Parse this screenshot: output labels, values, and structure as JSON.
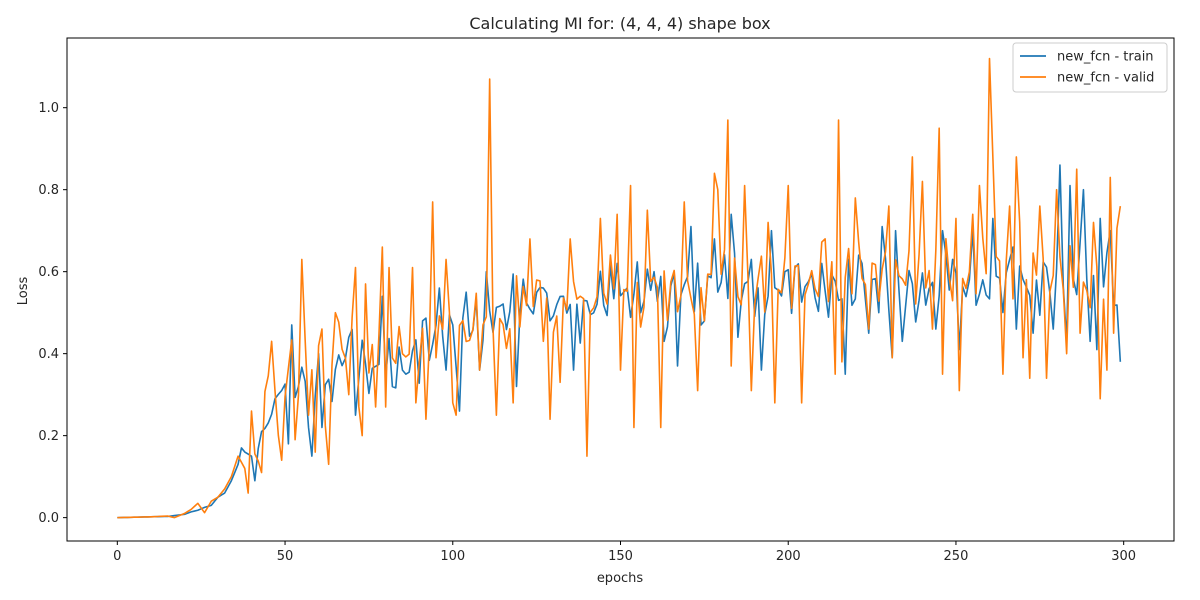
{
  "chart_data": {
    "type": "line",
    "title": "Calculating MI for: (4, 4, 4) shape box",
    "xlabel": "epochs",
    "ylabel": "Loss",
    "xlim": [
      -15,
      315
    ],
    "ylim": [
      -0.057,
      1.17
    ],
    "x_ticks": [
      0,
      50,
      100,
      150,
      200,
      250,
      300
    ],
    "y_ticks": [
      0.0,
      0.2,
      0.4,
      0.6,
      0.8,
      1.0
    ],
    "legend_position": "top-right",
    "grid": false,
    "series": [
      {
        "name": "new_fcn - train",
        "color": "#1f77b4",
        "anchors": [
          [
            0,
            0.0
          ],
          [
            10,
            0.002
          ],
          [
            15,
            0.003
          ],
          [
            20,
            0.008
          ],
          [
            22,
            0.014
          ],
          [
            24,
            0.018
          ],
          [
            26,
            0.025
          ],
          [
            28,
            0.03
          ],
          [
            30,
            0.05
          ],
          [
            32,
            0.06
          ],
          [
            34,
            0.09
          ],
          [
            36,
            0.13
          ],
          [
            38,
            0.16
          ],
          [
            40,
            0.15
          ],
          [
            42,
            0.17
          ],
          [
            44,
            0.21
          ],
          [
            46,
            0.26
          ],
          [
            48,
            0.3
          ],
          [
            50,
            0.33
          ],
          [
            52,
            0.3
          ],
          [
            54,
            0.33
          ],
          [
            56,
            0.35
          ],
          [
            58,
            0.3
          ],
          [
            60,
            0.28
          ],
          [
            62,
            0.3
          ],
          [
            64,
            0.33
          ],
          [
            66,
            0.37
          ],
          [
            68,
            0.4
          ],
          [
            70,
            0.42
          ],
          [
            75,
            0.35
          ],
          [
            80,
            0.36
          ],
          [
            85,
            0.36
          ],
          [
            90,
            0.4
          ],
          [
            95,
            0.45
          ],
          [
            100,
            0.44
          ],
          [
            105,
            0.46
          ],
          [
            110,
            0.5
          ],
          [
            115,
            0.5
          ],
          [
            120,
            0.53
          ],
          [
            125,
            0.52
          ],
          [
            130,
            0.54
          ],
          [
            135,
            0.5
          ],
          [
            140,
            0.5
          ],
          [
            145,
            0.55
          ],
          [
            150,
            0.53
          ],
          [
            155,
            0.55
          ],
          [
            160,
            0.56
          ],
          [
            165,
            0.54
          ],
          [
            170,
            0.56
          ],
          [
            175,
            0.55
          ],
          [
            180,
            0.58
          ],
          [
            185,
            0.57
          ],
          [
            190,
            0.55
          ],
          [
            195,
            0.56
          ],
          [
            200,
            0.58
          ],
          [
            205,
            0.57
          ],
          [
            210,
            0.55
          ],
          [
            215,
            0.56
          ],
          [
            220,
            0.57
          ],
          [
            225,
            0.56
          ],
          [
            230,
            0.57
          ],
          [
            235,
            0.55
          ],
          [
            240,
            0.56
          ],
          [
            245,
            0.57
          ],
          [
            250,
            0.56
          ],
          [
            255,
            0.58
          ],
          [
            260,
            0.56
          ],
          [
            265,
            0.57
          ],
          [
            270,
            0.58
          ],
          [
            275,
            0.57
          ],
          [
            280,
            0.6
          ],
          [
            285,
            0.6
          ],
          [
            290,
            0.58
          ],
          [
            295,
            0.58
          ],
          [
            299,
            0.5
          ]
        ],
        "spikes": [
          [
            37,
            0.17
          ],
          [
            41,
            0.09
          ],
          [
            43,
            0.21
          ],
          [
            51,
            0.18
          ],
          [
            52,
            0.47
          ],
          [
            54,
            0.32
          ],
          [
            57,
            0.22
          ],
          [
            58,
            0.15
          ],
          [
            60,
            0.4
          ],
          [
            61,
            0.22
          ],
          [
            69,
            0.44
          ],
          [
            71,
            0.25
          ],
          [
            79,
            0.54
          ],
          [
            91,
            0.48
          ],
          [
            96,
            0.56
          ],
          [
            98,
            0.36
          ],
          [
            102,
            0.26
          ],
          [
            104,
            0.55
          ],
          [
            108,
            0.36
          ],
          [
            110,
            0.6
          ],
          [
            119,
            0.32
          ],
          [
            127,
            0.56
          ],
          [
            129,
            0.48
          ],
          [
            135,
            0.52
          ],
          [
            136,
            0.36
          ],
          [
            149,
            0.62
          ],
          [
            156,
            0.5
          ],
          [
            160,
            0.6
          ],
          [
            163,
            0.43
          ],
          [
            167,
            0.37
          ],
          [
            171,
            0.71
          ],
          [
            174,
            0.47
          ],
          [
            178,
            0.68
          ],
          [
            183,
            0.74
          ],
          [
            185,
            0.44
          ],
          [
            189,
            0.63
          ],
          [
            192,
            0.36
          ],
          [
            195,
            0.7
          ],
          [
            199,
            0.6
          ],
          [
            210,
            0.62
          ],
          [
            215,
            0.53
          ],
          [
            217,
            0.35
          ],
          [
            222,
            0.62
          ],
          [
            224,
            0.45
          ],
          [
            228,
            0.71
          ],
          [
            231,
            0.39
          ],
          [
            232,
            0.7
          ],
          [
            234,
            0.43
          ],
          [
            239,
            0.53
          ],
          [
            244,
            0.46
          ],
          [
            246,
            0.7
          ],
          [
            249,
            0.63
          ],
          [
            251,
            0.41
          ],
          [
            255,
            0.7
          ],
          [
            258,
            0.58
          ],
          [
            261,
            0.73
          ],
          [
            267,
            0.66
          ],
          [
            268,
            0.46
          ],
          [
            273,
            0.45
          ],
          [
            279,
            0.46
          ],
          [
            281,
            0.86
          ],
          [
            283,
            0.43
          ],
          [
            284,
            0.81
          ],
          [
            287,
            0.67
          ],
          [
            288,
            0.8
          ],
          [
            290,
            0.43
          ],
          [
            292,
            0.41
          ],
          [
            293,
            0.73
          ],
          [
            296,
            0.7
          ],
          [
            299,
            0.38
          ]
        ]
      },
      {
        "name": "new_fcn - valid",
        "color": "#ff7f0e",
        "anchors": [
          [
            0,
            0.0
          ],
          [
            10,
            0.002
          ],
          [
            15,
            0.004
          ],
          [
            17,
            0.0
          ],
          [
            20,
            0.01
          ],
          [
            22,
            0.02
          ],
          [
            24,
            0.035
          ],
          [
            26,
            0.012
          ],
          [
            28,
            0.04
          ],
          [
            30,
            0.05
          ],
          [
            32,
            0.07
          ],
          [
            34,
            0.1
          ],
          [
            36,
            0.15
          ],
          [
            38,
            0.12
          ],
          [
            40,
            0.17
          ],
          [
            42,
            0.14
          ],
          [
            44,
            0.3
          ],
          [
            46,
            0.4
          ],
          [
            48,
            0.2
          ],
          [
            50,
            0.3
          ],
          [
            52,
            0.42
          ],
          [
            54,
            0.3
          ],
          [
            56,
            0.45
          ],
          [
            58,
            0.35
          ],
          [
            60,
            0.42
          ],
          [
            62,
            0.2
          ],
          [
            64,
            0.42
          ],
          [
            66,
            0.45
          ],
          [
            68,
            0.4
          ],
          [
            70,
            0.45
          ],
          [
            75,
            0.4
          ],
          [
            80,
            0.45
          ],
          [
            85,
            0.4
          ],
          [
            90,
            0.45
          ],
          [
            95,
            0.48
          ],
          [
            100,
            0.44
          ],
          [
            105,
            0.45
          ],
          [
            110,
            0.55
          ],
          [
            115,
            0.45
          ],
          [
            120,
            0.5
          ],
          [
            125,
            0.55
          ],
          [
            130,
            0.5
          ],
          [
            135,
            0.52
          ],
          [
            140,
            0.5
          ],
          [
            145,
            0.58
          ],
          [
            150,
            0.55
          ],
          [
            155,
            0.5
          ],
          [
            160,
            0.6
          ],
          [
            165,
            0.55
          ],
          [
            170,
            0.55
          ],
          [
            175,
            0.55
          ],
          [
            180,
            0.6
          ],
          [
            185,
            0.55
          ],
          [
            190,
            0.58
          ],
          [
            195,
            0.55
          ],
          [
            200,
            0.6
          ],
          [
            205,
            0.55
          ],
          [
            210,
            0.6
          ],
          [
            215,
            0.58
          ],
          [
            220,
            0.6
          ],
          [
            225,
            0.6
          ],
          [
            230,
            0.58
          ],
          [
            235,
            0.6
          ],
          [
            240,
            0.6
          ],
          [
            245,
            0.62
          ],
          [
            250,
            0.58
          ],
          [
            255,
            0.6
          ],
          [
            260,
            0.62
          ],
          [
            265,
            0.6
          ],
          [
            270,
            0.6
          ],
          [
            275,
            0.58
          ],
          [
            280,
            0.6
          ],
          [
            285,
            0.58
          ],
          [
            290,
            0.55
          ],
          [
            295,
            0.55
          ],
          [
            299,
            0.76
          ]
        ],
        "spikes": [
          [
            39,
            0.06
          ],
          [
            40,
            0.26
          ],
          [
            43,
            0.11
          ],
          [
            46,
            0.43
          ],
          [
            49,
            0.14
          ],
          [
            53,
            0.19
          ],
          [
            55,
            0.63
          ],
          [
            57,
            0.25
          ],
          [
            59,
            0.16
          ],
          [
            61,
            0.46
          ],
          [
            63,
            0.13
          ],
          [
            65,
            0.5
          ],
          [
            69,
            0.3
          ],
          [
            71,
            0.61
          ],
          [
            72,
            0.27
          ],
          [
            73,
            0.2
          ],
          [
            74,
            0.57
          ],
          [
            77,
            0.27
          ],
          [
            79,
            0.66
          ],
          [
            80,
            0.27
          ],
          [
            81,
            0.61
          ],
          [
            88,
            0.61
          ],
          [
            89,
            0.28
          ],
          [
            92,
            0.24
          ],
          [
            94,
            0.77
          ],
          [
            95,
            0.39
          ],
          [
            98,
            0.63
          ],
          [
            100,
            0.28
          ],
          [
            101,
            0.25
          ],
          [
            108,
            0.36
          ],
          [
            110,
            0.49
          ],
          [
            111,
            1.07
          ],
          [
            113,
            0.25
          ],
          [
            118,
            0.28
          ],
          [
            119,
            0.59
          ],
          [
            123,
            0.68
          ],
          [
            127,
            0.43
          ],
          [
            129,
            0.24
          ],
          [
            132,
            0.33
          ],
          [
            135,
            0.68
          ],
          [
            138,
            0.54
          ],
          [
            140,
            0.15
          ],
          [
            144,
            0.73
          ],
          [
            149,
            0.74
          ],
          [
            150,
            0.36
          ],
          [
            153,
            0.81
          ],
          [
            154,
            0.22
          ],
          [
            158,
            0.75
          ],
          [
            162,
            0.22
          ],
          [
            169,
            0.77
          ],
          [
            173,
            0.31
          ],
          [
            178,
            0.84
          ],
          [
            179,
            0.8
          ],
          [
            182,
            0.97
          ],
          [
            183,
            0.37
          ],
          [
            187,
            0.81
          ],
          [
            189,
            0.31
          ],
          [
            194,
            0.72
          ],
          [
            196,
            0.28
          ],
          [
            200,
            0.81
          ],
          [
            204,
            0.28
          ],
          [
            211,
            0.68
          ],
          [
            214,
            0.35
          ],
          [
            215,
            0.97
          ],
          [
            216,
            0.38
          ],
          [
            220,
            0.78
          ],
          [
            224,
            0.46
          ],
          [
            230,
            0.76
          ],
          [
            231,
            0.39
          ],
          [
            237,
            0.88
          ],
          [
            240,
            0.82
          ],
          [
            243,
            0.46
          ],
          [
            245,
            0.95
          ],
          [
            246,
            0.35
          ],
          [
            250,
            0.73
          ],
          [
            251,
            0.31
          ],
          [
            255,
            0.74
          ],
          [
            257,
            0.81
          ],
          [
            260,
            1.12
          ],
          [
            261,
            0.88
          ],
          [
            264,
            0.35
          ],
          [
            266,
            0.76
          ],
          [
            268,
            0.88
          ],
          [
            269,
            0.72
          ],
          [
            270,
            0.39
          ],
          [
            272,
            0.34
          ],
          [
            275,
            0.76
          ],
          [
            277,
            0.34
          ],
          [
            280,
            0.8
          ],
          [
            283,
            0.4
          ],
          [
            286,
            0.85
          ],
          [
            287,
            0.45
          ],
          [
            291,
            0.72
          ],
          [
            293,
            0.29
          ],
          [
            295,
            0.36
          ],
          [
            296,
            0.83
          ],
          [
            297,
            0.45
          ],
          [
            299,
            0.76
          ]
        ]
      }
    ]
  }
}
